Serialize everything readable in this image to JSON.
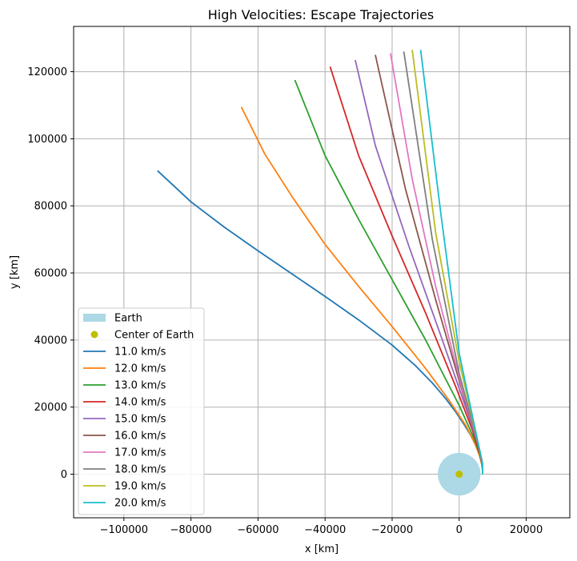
{
  "chart_data": {
    "type": "line",
    "title": "High Velocities: Escape Trajectories",
    "xlabel": "x [km]",
    "ylabel": "y [km]",
    "xlim": [
      -115000,
      33000
    ],
    "ylim": [
      -13000,
      133500
    ],
    "xticks": [
      -100000,
      -80000,
      -60000,
      -40000,
      -20000,
      0,
      20000
    ],
    "yticks": [
      0,
      20000,
      40000,
      60000,
      80000,
      100000,
      120000
    ],
    "xtick_labels": [
      "−100000",
      "−80000",
      "−60000",
      "−40000",
      "−20000",
      "0",
      "20000"
    ],
    "ytick_labels": [
      "0",
      "20000",
      "40000",
      "60000",
      "80000",
      "100000",
      "120000"
    ],
    "grid": true,
    "legend_position": "lower-left",
    "earth": {
      "label": "Earth",
      "radius_km": 6371,
      "color": "#add8e6"
    },
    "center": {
      "label": "Center of Earth",
      "x": 0,
      "y": 0,
      "color": "#bfbf00"
    },
    "series": [
      {
        "name": "11.0 km/s",
        "color": "#1f77b4",
        "points": [
          [
            7000,
            0
          ],
          [
            6950,
            1500
          ],
          [
            6700,
            3200
          ],
          [
            6000,
            5800
          ],
          [
            5000,
            8500
          ],
          [
            3500,
            11500
          ],
          [
            1500,
            14800
          ],
          [
            -1000,
            18500
          ],
          [
            -4000,
            22500
          ],
          [
            -8000,
            27200
          ],
          [
            -13000,
            32300
          ],
          [
            -20000,
            38500
          ],
          [
            -30000,
            46000
          ],
          [
            -40000,
            53000
          ],
          [
            -50000,
            59800
          ],
          [
            -60000,
            66600
          ],
          [
            -70000,
            73600
          ],
          [
            -80000,
            81200
          ],
          [
            -90000,
            90500
          ]
        ]
      },
      {
        "name": "12.0 km/s",
        "color": "#ff7f0e",
        "points": [
          [
            7000,
            0
          ],
          [
            6900,
            2000
          ],
          [
            6400,
            4500
          ],
          [
            5000,
            8500
          ],
          [
            2000,
            14500
          ],
          [
            -3000,
            22000
          ],
          [
            -10000,
            31500
          ],
          [
            -20000,
            44000
          ],
          [
            -30000,
            56000
          ],
          [
            -40000,
            68500
          ],
          [
            -50000,
            83000
          ],
          [
            -58000,
            95500
          ],
          [
            -65000,
            109500
          ]
        ]
      },
      {
        "name": "13.0 km/s",
        "color": "#2ca02c",
        "points": [
          [
            7000,
            0
          ],
          [
            6900,
            2500
          ],
          [
            6300,
            5500
          ],
          [
            4500,
            10500
          ],
          [
            0,
            20500
          ],
          [
            -10000,
            40000
          ],
          [
            -20000,
            58000
          ],
          [
            -30000,
            76000
          ],
          [
            -40000,
            95000
          ],
          [
            -49000,
            117500
          ]
        ]
      },
      {
        "name": "14.0 km/s",
        "color": "#d62728",
        "points": [
          [
            7000,
            0
          ],
          [
            6900,
            2500
          ],
          [
            6200,
            6000
          ],
          [
            4000,
            13000
          ],
          [
            -1000,
            26000
          ],
          [
            -10000,
            48000
          ],
          [
            -20000,
            71000
          ],
          [
            -30000,
            95000
          ],
          [
            -38500,
            121500
          ]
        ]
      },
      {
        "name": "15.0 km/s",
        "color": "#9467bd",
        "points": [
          [
            7000,
            0
          ],
          [
            6900,
            3000
          ],
          [
            6000,
            7500
          ],
          [
            3000,
            17000
          ],
          [
            -5000,
            40000
          ],
          [
            -15000,
            68000
          ],
          [
            -25000,
            98000
          ],
          [
            -31000,
            123500
          ]
        ]
      },
      {
        "name": "16.0 km/s",
        "color": "#8c564b",
        "points": [
          [
            7000,
            0
          ],
          [
            6900,
            3000
          ],
          [
            5900,
            8000
          ],
          [
            2000,
            21000
          ],
          [
            -7000,
            52000
          ],
          [
            -16000,
            85000
          ],
          [
            -25000,
            125000
          ]
        ]
      },
      {
        "name": "17.0 km/s",
        "color": "#e377c2",
        "points": [
          [
            7000,
            0
          ],
          [
            6900,
            3000
          ],
          [
            5800,
            8500
          ],
          [
            1000,
            25000
          ],
          [
            -7000,
            56000
          ],
          [
            -14000,
            88000
          ],
          [
            -20500,
            125500
          ]
        ]
      },
      {
        "name": "18.0 km/s",
        "color": "#7f7f7f",
        "points": [
          [
            7000,
            0
          ],
          [
            6900,
            3500
          ],
          [
            5700,
            9000
          ],
          [
            0,
            30000
          ],
          [
            -8000,
            70000
          ],
          [
            -16500,
            126000
          ]
        ]
      },
      {
        "name": "19.0 km/s",
        "color": "#bcbd22",
        "points": [
          [
            7000,
            0
          ],
          [
            6900,
            3500
          ],
          [
            5600,
            9500
          ],
          [
            0,
            33500
          ],
          [
            -7000,
            72000
          ],
          [
            -14000,
            126500
          ]
        ]
      },
      {
        "name": "20.0 km/s",
        "color": "#17becf",
        "points": [
          [
            7000,
            0
          ],
          [
            6900,
            3500
          ],
          [
            5500,
            10000
          ],
          [
            0,
            36000
          ],
          [
            -5500,
            78000
          ],
          [
            -11500,
            126500
          ]
        ]
      }
    ]
  }
}
